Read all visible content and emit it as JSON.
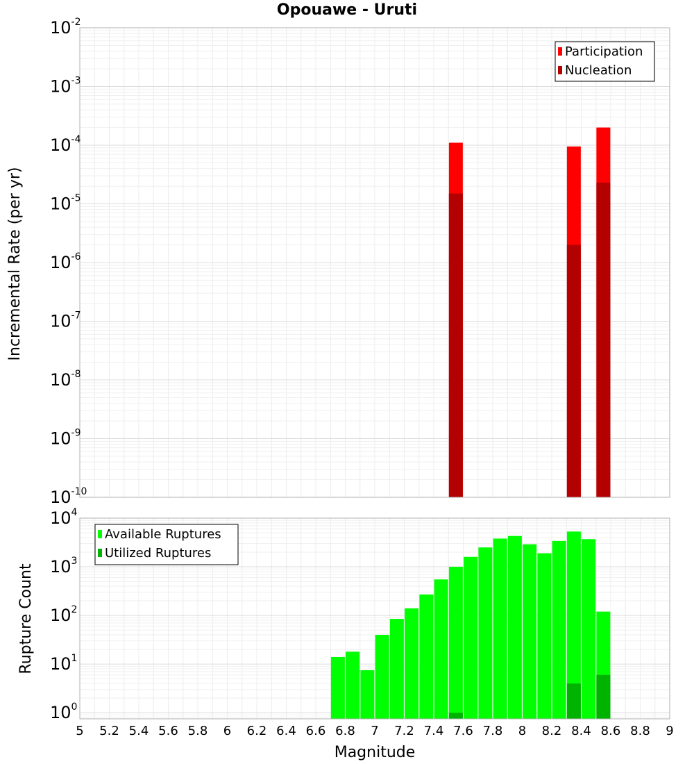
{
  "title": "Opouawe - Uruti",
  "chart_data": [
    {
      "type": "bar",
      "name": "rate-panel",
      "ylabel": "Incremental Rate (per yr)",
      "yscale": "log",
      "ylim": [
        1e-10,
        0.01
      ],
      "yticks": [
        {
          "base": "10",
          "exp": "-10"
        },
        {
          "base": "10",
          "exp": "-9"
        },
        {
          "base": "10",
          "exp": "-8"
        },
        {
          "base": "10",
          "exp": "-7"
        },
        {
          "base": "10",
          "exp": "-6"
        },
        {
          "base": "10",
          "exp": "-5"
        },
        {
          "base": "10",
          "exp": "-4"
        },
        {
          "base": "10",
          "exp": "-3"
        },
        {
          "base": "10",
          "exp": "-2"
        }
      ],
      "xlim": [
        5,
        9
      ],
      "grid": true,
      "legend_position": "top-right",
      "series": [
        {
          "name": "Participation",
          "color": "#ff0000",
          "x": [
            7.55,
            8.35,
            8.55
          ],
          "values": [
            0.00011,
            9.5e-05,
            0.0002
          ]
        },
        {
          "name": "Nucleation",
          "color": "#b30000",
          "x": [
            7.55,
            8.35,
            8.55
          ],
          "values": [
            1.5e-05,
            2e-06,
            2.3e-05
          ]
        }
      ]
    },
    {
      "type": "bar",
      "name": "count-panel",
      "xlabel": "Magnitude",
      "ylabel": "Rupture Count",
      "yscale": "log",
      "ylim": [
        0.75,
        10000
      ],
      "yticks": [
        {
          "base": "10",
          "exp": "0"
        },
        {
          "base": "10",
          "exp": "1"
        },
        {
          "base": "10",
          "exp": "2"
        },
        {
          "base": "10",
          "exp": "3"
        },
        {
          "base": "10",
          "exp": "4"
        }
      ],
      "xlim": [
        5,
        9
      ],
      "xticks": [
        "5",
        "5.2",
        "5.4",
        "5.6",
        "5.8",
        "6",
        "6.2",
        "6.4",
        "6.6",
        "6.8",
        "7",
        "7.2",
        "7.4",
        "7.6",
        "7.8",
        "8",
        "8.2",
        "8.4",
        "8.6",
        "8.8",
        "9"
      ],
      "grid": true,
      "legend_position": "top-left",
      "series": [
        {
          "name": "Available Ruptures",
          "color": "#00ff00",
          "x": [
            6.75,
            6.85,
            6.95,
            7.05,
            7.15,
            7.25,
            7.35,
            7.45,
            7.55,
            7.65,
            7.75,
            7.85,
            7.95,
            8.05,
            8.15,
            8.25,
            8.35,
            8.45,
            8.55
          ],
          "values": [
            14,
            18,
            7.5,
            40,
            85,
            140,
            270,
            550,
            1000,
            1600,
            2500,
            3800,
            4300,
            2900,
            1900,
            3400,
            5300,
            3700,
            120
          ]
        },
        {
          "name": "Utilized Ruptures",
          "color": "#00b300",
          "x": [
            7.55,
            8.35,
            8.55
          ],
          "values": [
            1,
            4,
            6
          ]
        }
      ]
    }
  ]
}
